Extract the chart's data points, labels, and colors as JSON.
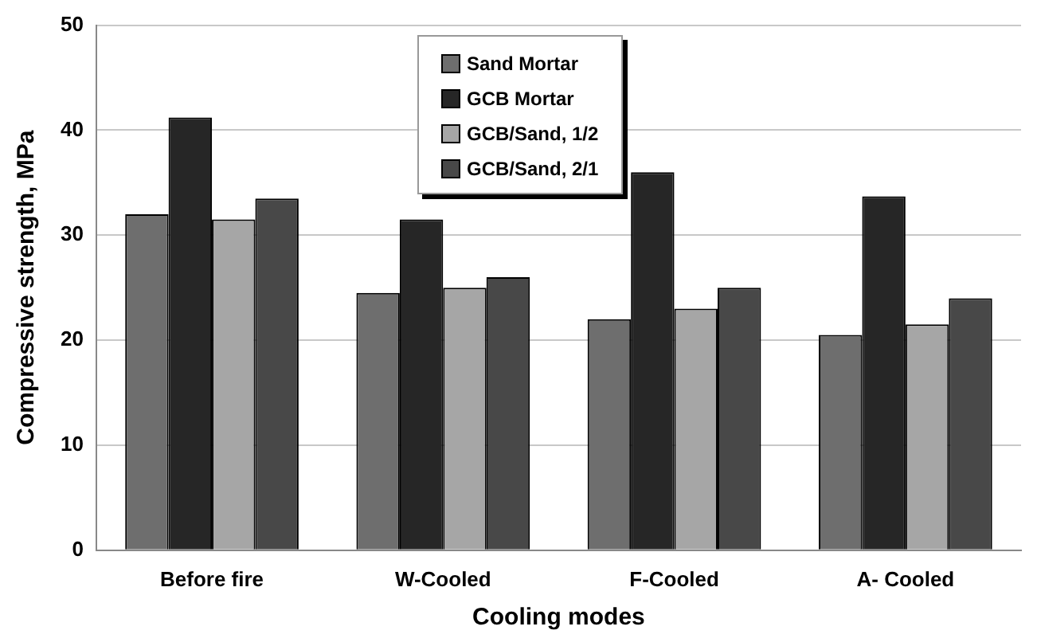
{
  "chart_data": {
    "type": "bar",
    "xlabel": "Cooling modes",
    "ylabel": "Compressive strength, MPa",
    "categories": [
      "Before fire",
      "W-Cooled",
      "F-Cooled",
      "A- Cooled"
    ],
    "series": [
      {
        "name": "Sand Mortar",
        "color": "#6e6e6e",
        "values": [
          32,
          24.5,
          22,
          20.5
        ]
      },
      {
        "name": "GCB Mortar",
        "color": "#262626",
        "values": [
          41.2,
          31.5,
          36,
          33.7
        ]
      },
      {
        "name": "GCB/Sand, 1/2",
        "color": "#a6a6a6",
        "values": [
          31.5,
          25,
          23,
          21.5
        ]
      },
      {
        "name": "GCB/Sand, 2/1",
        "color": "#484848",
        "values": [
          33.5,
          26,
          25,
          24
        ]
      }
    ],
    "ylim": [
      0,
      50
    ],
    "yticks": [
      0,
      10,
      20,
      30,
      40,
      50
    ],
    "grid": "y",
    "legend": "top"
  }
}
